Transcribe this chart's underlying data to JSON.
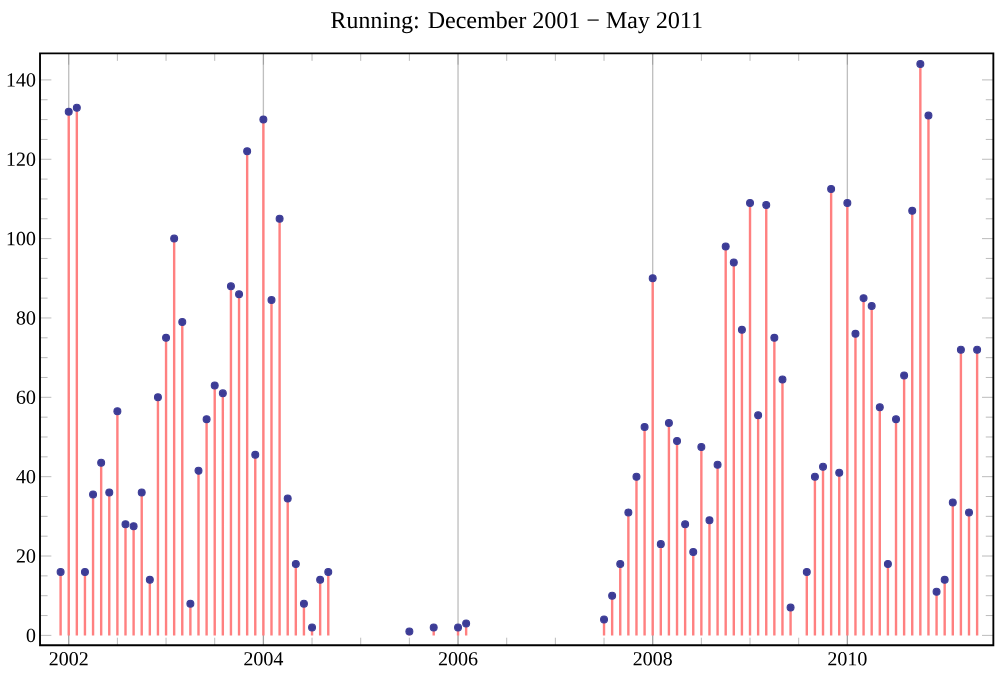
{
  "chart_data": {
    "type": "lollipop",
    "title": "Running: December 2001 − May 2011",
    "x": [
      "2001-12",
      "2002-01",
      "2002-02",
      "2002-03",
      "2002-04",
      "2002-05",
      "2002-06",
      "2002-07",
      "2002-08",
      "2002-09",
      "2002-10",
      "2002-11",
      "2002-12",
      "2003-01",
      "2003-02",
      "2003-03",
      "2003-04",
      "2003-05",
      "2003-06",
      "2003-07",
      "2003-08",
      "2003-09",
      "2003-10",
      "2003-11",
      "2003-12",
      "2004-01",
      "2004-02",
      "2004-03",
      "2004-04",
      "2004-05",
      "2004-06",
      "2004-07",
      "2004-08",
      "2004-09",
      "2005-07",
      "2005-10",
      "2006-01",
      "2006-02",
      "2007-07",
      "2007-08",
      "2007-09",
      "2007-10",
      "2007-11",
      "2007-12",
      "2008-01",
      "2008-02",
      "2008-03",
      "2008-04",
      "2008-05",
      "2008-06",
      "2008-07",
      "2008-08",
      "2008-09",
      "2008-10",
      "2008-11",
      "2008-12",
      "2009-01",
      "2009-02",
      "2009-03",
      "2009-04",
      "2009-05",
      "2009-06",
      "2009-08",
      "2009-09",
      "2009-10",
      "2009-11",
      "2009-12",
      "2010-01",
      "2010-02",
      "2010-03",
      "2010-04",
      "2010-05",
      "2010-06",
      "2010-07",
      "2010-08",
      "2010-09",
      "2010-10",
      "2010-11",
      "2010-12",
      "2011-01",
      "2011-02",
      "2011-03",
      "2011-04",
      "2011-05"
    ],
    "series": [
      {
        "color": "#3c3c96",
        "values": [
          16,
          132,
          133,
          16,
          35.5,
          43.5,
          36,
          56.5,
          28,
          27.5,
          36,
          14,
          60,
          75,
          100,
          79,
          8,
          41.5,
          54.5,
          63,
          61,
          88,
          86,
          122,
          45.5,
          130,
          84.5,
          105,
          34.5,
          18,
          8,
          2,
          14,
          16,
          1,
          2,
          2,
          3,
          4,
          10,
          18,
          31,
          40,
          52.5,
          90,
          23,
          53.5,
          49,
          28,
          21,
          47.5,
          29,
          43,
          98,
          94,
          77,
          109,
          55.5,
          108.5,
          75,
          64.5,
          7,
          16,
          40,
          42.5,
          112.5,
          41,
          109,
          76,
          85,
          83,
          57.5,
          18,
          54.5,
          65.5,
          107,
          144,
          131,
          11,
          14,
          33.5,
          72,
          31,
          72
        ]
      }
    ],
    "xlim": [
      "2001-09-15",
      "2011-07"
    ],
    "ylim": [
      -2.5,
      146.7
    ],
    "xticks": [
      "2002",
      "2004",
      "2006",
      "2008",
      "2010"
    ],
    "yticks": [
      0,
      20,
      40,
      60,
      80,
      100,
      120,
      140
    ],
    "grid": "x",
    "marker": "circle"
  }
}
